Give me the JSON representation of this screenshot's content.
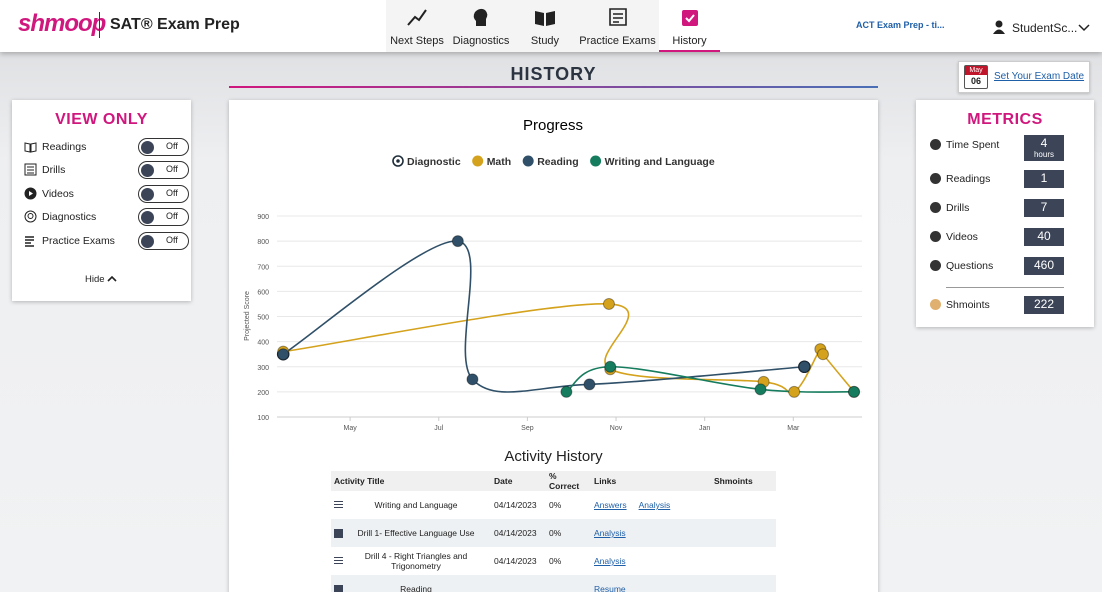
{
  "header": {
    "logo": "shmoop",
    "product": "SAT® Exam Prep",
    "nav": [
      "Next Steps",
      "Diagnostics",
      "Study",
      "Practice Exams",
      "History"
    ],
    "switch_product": "ACT Exam Prep - ti...",
    "user": "StudentSc..."
  },
  "page_title": "HISTORY",
  "exam_date": {
    "month": "May",
    "day": "06",
    "link": "Set Your Exam Date"
  },
  "view_only": {
    "title": "VIEW ONLY",
    "items": [
      {
        "label": "Readings",
        "state": "Off"
      },
      {
        "label": "Drills",
        "state": "Off"
      },
      {
        "label": "Videos",
        "state": "Off"
      },
      {
        "label": "Diagnostics",
        "state": "Off"
      },
      {
        "label": "Practice Exams",
        "state": "Off"
      }
    ],
    "hide": "Hide"
  },
  "metrics": {
    "title": "METRICS",
    "items": [
      {
        "label": "Time Spent",
        "value": 4,
        "unit": "hours"
      },
      {
        "label": "Readings",
        "value": 1
      },
      {
        "label": "Drills",
        "value": 7
      },
      {
        "label": "Videos",
        "value": 40
      },
      {
        "label": "Questions",
        "value": 460
      },
      {
        "label": "Shmoints",
        "value": 222
      }
    ]
  },
  "chart_data": {
    "type": "line",
    "title": "Progress",
    "y_label": "Projected Score",
    "xlim": [
      3.35,
      16.55
    ],
    "xticks": [
      {
        "value": 5,
        "label": "May"
      },
      {
        "value": 7,
        "label": "Jul"
      },
      {
        "value": 9,
        "label": "Sep"
      },
      {
        "value": 11,
        "label": "Nov"
      },
      {
        "value": 13,
        "label": "Jan"
      },
      {
        "value": 15,
        "label": "Mar"
      }
    ],
    "ylim": [
      100,
      900
    ],
    "yticks": [
      100,
      200,
      300,
      400,
      500,
      600,
      700,
      800,
      900
    ],
    "grid": true,
    "series": [
      {
        "name": "Diagnostic",
        "color": "#1f2d3a",
        "line": false,
        "x": [
          3.49,
          15.25
        ],
        "values": [
          350,
          300
        ]
      },
      {
        "name": "Math",
        "color": "#d4a21c",
        "x": [
          3.49,
          10.84,
          10.87,
          14.33,
          15.02,
          15.61,
          15.67,
          16.37
        ],
        "values": [
          360,
          550,
          290,
          240,
          200,
          370,
          350,
          200
        ]
      },
      {
        "name": "Reading",
        "color": "#2f5068",
        "x": [
          3.49,
          7.43,
          7.76,
          10.4,
          15.25
        ],
        "values": [
          350,
          800,
          250,
          230,
          300
        ]
      },
      {
        "name": "Writing and Language",
        "color": "#167c5e",
        "x": [
          9.88,
          10.87,
          14.26,
          16.37
        ],
        "values": [
          200,
          300,
          210,
          200
        ]
      }
    ]
  },
  "activity": {
    "title": "Activity History",
    "columns": [
      "Activity Title",
      "Date",
      "% Correct",
      "Links",
      "Shmoints"
    ],
    "rows": [
      {
        "title": "Writing and Language",
        "date": "04/14/2023",
        "correct": "0%",
        "links": [
          "Answers",
          "Analysis"
        ]
      },
      {
        "title": "Drill 1- Effective Language Use",
        "date": "04/14/2023",
        "correct": "0%",
        "links": [
          "Analysis"
        ]
      },
      {
        "title": "Drill 4 - Right Triangles and Trigonometry",
        "date": "04/14/2023",
        "correct": "0%",
        "links": [
          "Analysis"
        ]
      },
      {
        "title": "Reading",
        "links": [
          "Resume"
        ]
      }
    ]
  }
}
